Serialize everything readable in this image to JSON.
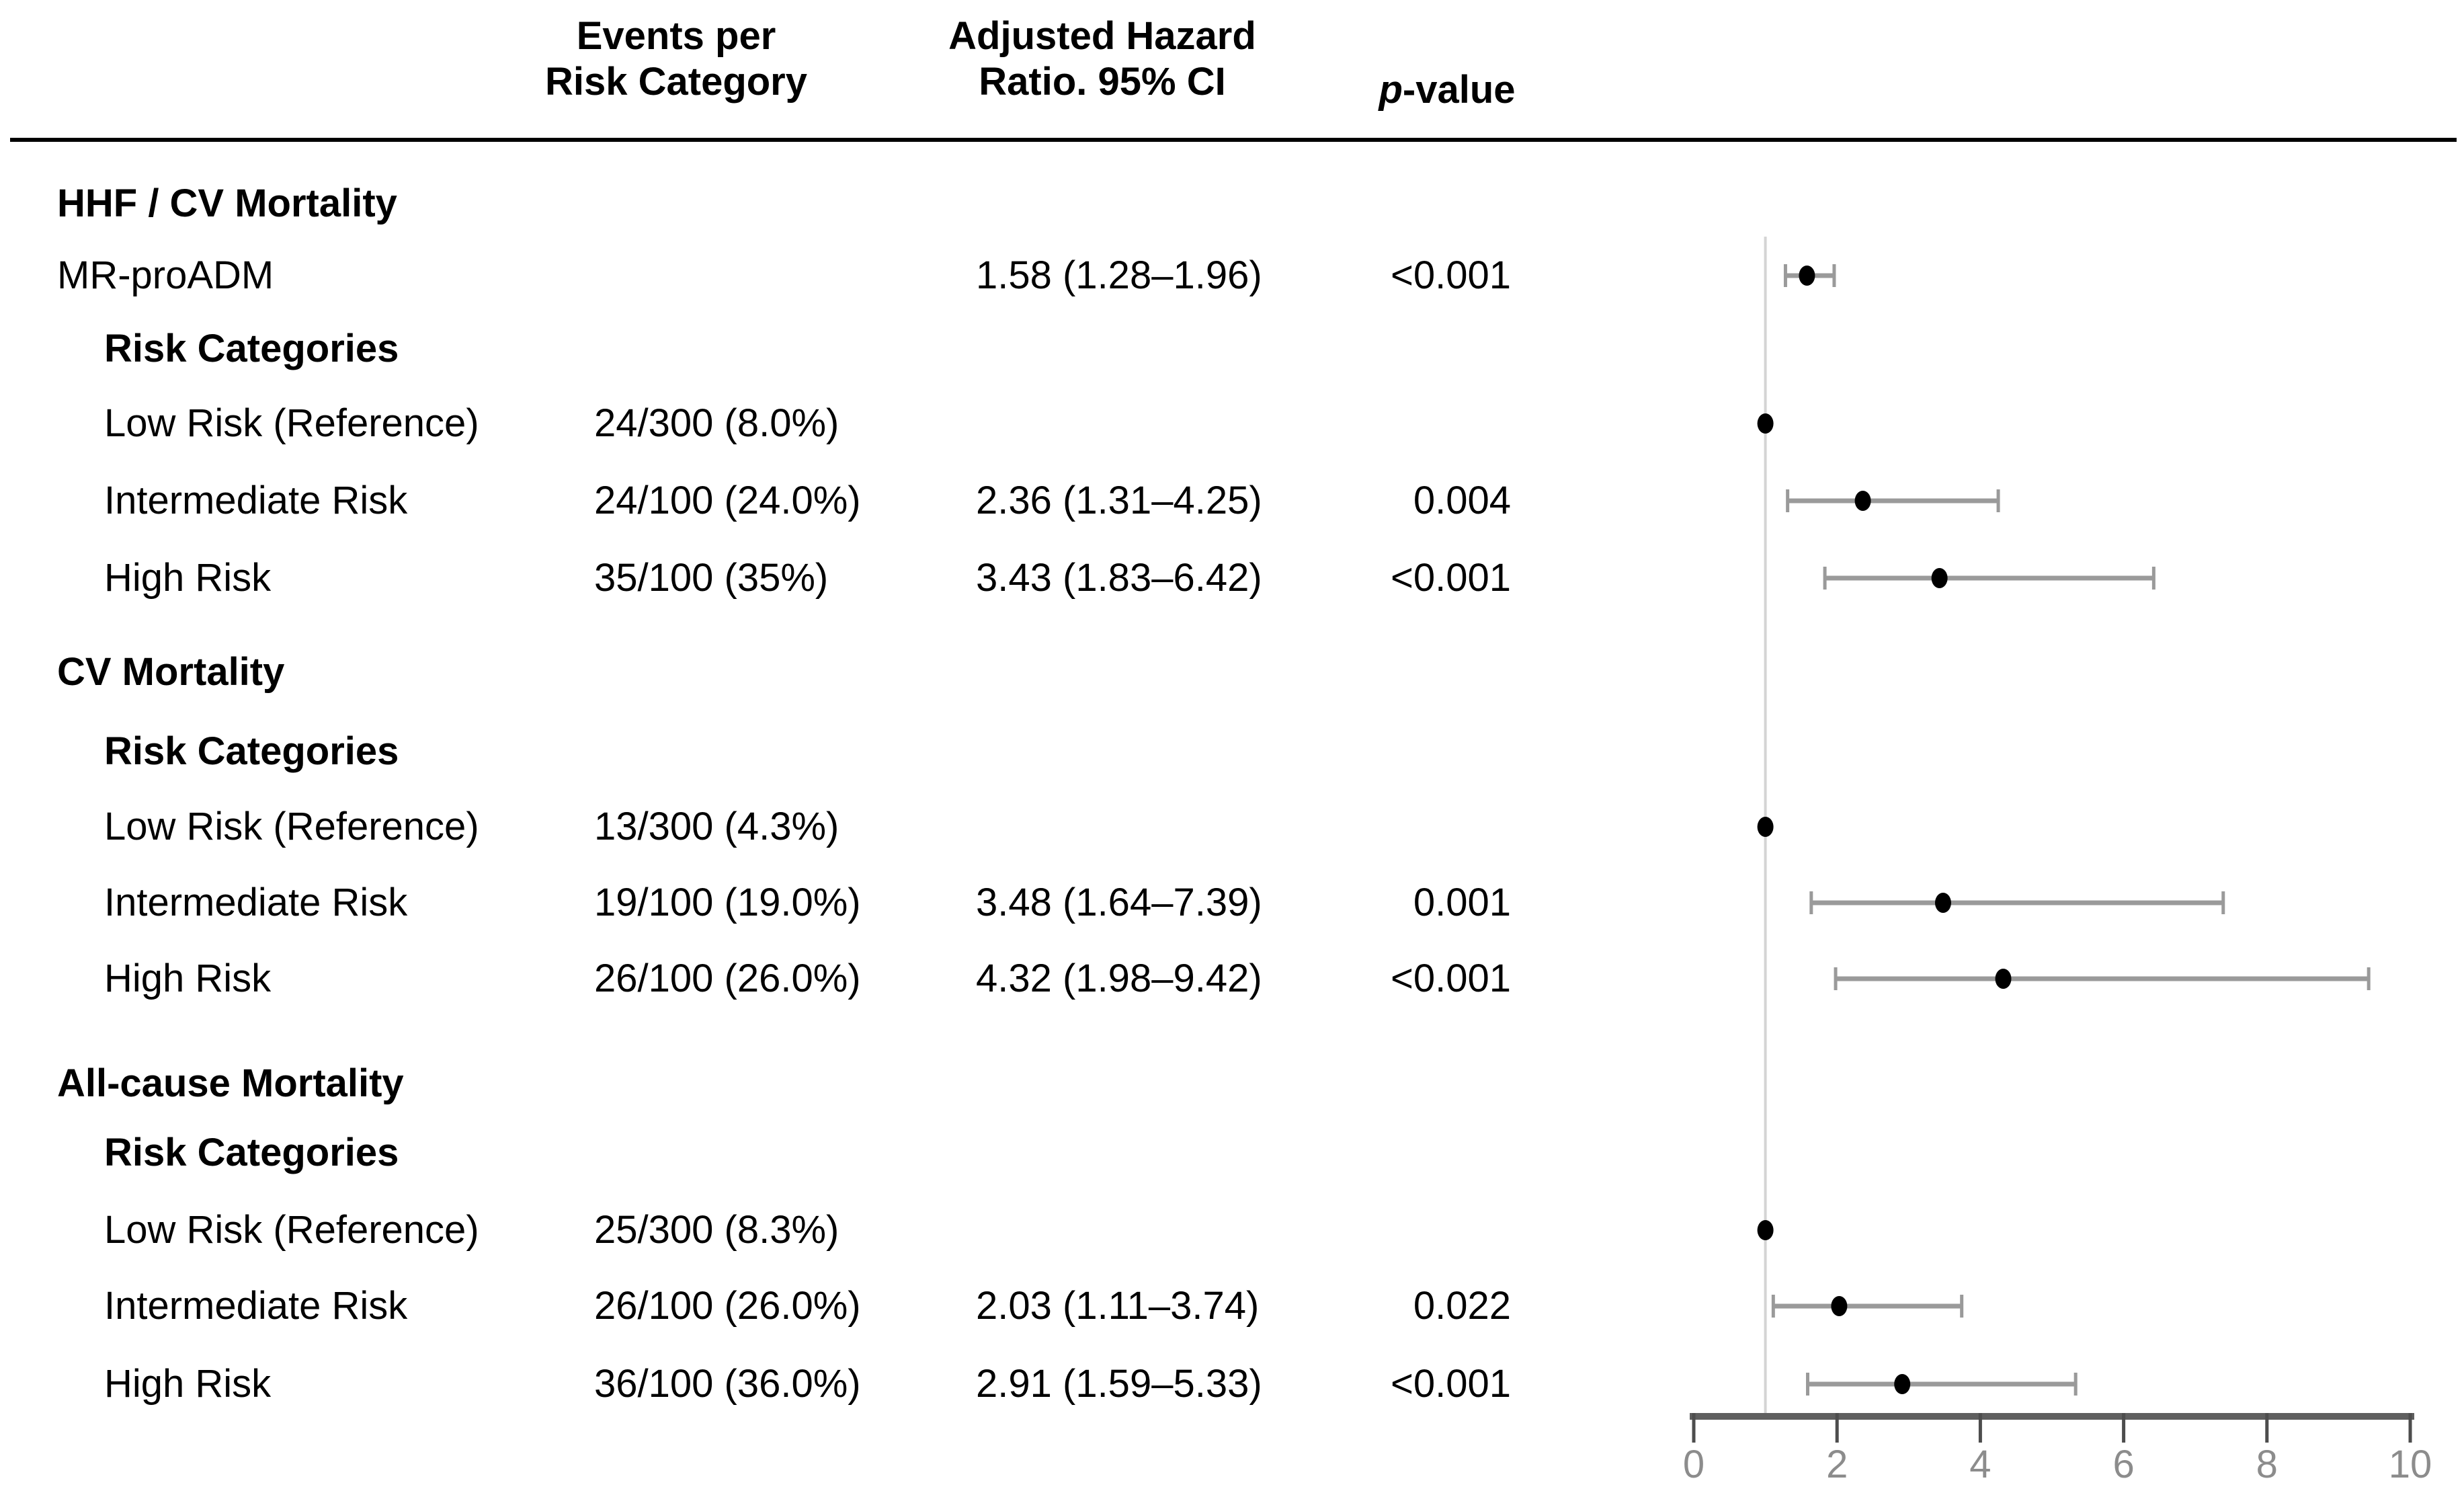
{
  "figure": {
    "columns": {
      "events": {
        "line1": "Events per",
        "line2": "Risk Category"
      },
      "hazard": {
        "line1": "Adjusted Hazard",
        "line2": "Ratio. 95% CI"
      },
      "pvalue": {
        "italic": "p",
        "rest": "-value"
      }
    },
    "rows": [
      {
        "kind": "section",
        "label": "HHF / CV Mortality"
      },
      {
        "kind": "item",
        "label": "MR-proADM",
        "hr_text": "1.58 (1.28–1.96)",
        "p": "<0.001",
        "point": 0
      },
      {
        "kind": "subheader",
        "label": "Risk Categories"
      },
      {
        "kind": "item",
        "label": "Low Risk (Reference)",
        "events": "24/300 (8.0%)",
        "point": 1
      },
      {
        "kind": "item",
        "label": "Intermediate Risk",
        "events": "24/100 (24.0%)",
        "hr_text": "2.36 (1.31–4.25)",
        "p": "0.004",
        "point": 2
      },
      {
        "kind": "item",
        "label": "High Risk",
        "events": "35/100 (35%)",
        "hr_text": "3.43 (1.83–6.42)",
        "p": "<0.001",
        "point": 3
      },
      {
        "kind": "section",
        "label": "CV Mortality"
      },
      {
        "kind": "subheader",
        "label": "Risk Categories"
      },
      {
        "kind": "item",
        "label": "Low Risk (Reference)",
        "events": "13/300 (4.3%)",
        "point": 4
      },
      {
        "kind": "item",
        "label": "Intermediate Risk",
        "events": "19/100 (19.0%)",
        "hr_text": "3.48 (1.64–7.39)",
        "p": "0.001",
        "point": 5
      },
      {
        "kind": "item",
        "label": "High Risk",
        "events": "26/100 (26.0%)",
        "hr_text": "4.32 (1.98–9.42)",
        "p": "<0.001",
        "point": 6
      },
      {
        "kind": "section",
        "label": "All-cause Mortality"
      },
      {
        "kind": "subheader",
        "label": "Risk Categories"
      },
      {
        "kind": "item",
        "label": "Low Risk (Reference)",
        "events": "25/300 (8.3%)",
        "point": 7
      },
      {
        "kind": "item",
        "label": "Intermediate Risk",
        "events": "26/100 (26.0%)",
        "hr_text": "2.03 (1.11–3.74)",
        "p": "0.022",
        "point": 8
      },
      {
        "kind": "item",
        "label": "High Risk",
        "events": "36/100 (36.0%)",
        "hr_text": "2.91 (1.59–5.33)",
        "p": "<0.001",
        "point": 9
      }
    ]
  },
  "chart_data": {
    "type": "scatter",
    "subtype": "forest-plot",
    "title": "",
    "xlabel": "",
    "ylabel": "",
    "xlim": [
      0,
      10
    ],
    "xticks": [
      0,
      2,
      4,
      6,
      8,
      10
    ],
    "reference_line_x": 1,
    "grid": false,
    "legend": "none",
    "points": [
      {
        "group": "HHF / CV Mortality",
        "label": "MR-proADM",
        "hr": 1.58,
        "ci_low": 1.28,
        "ci_high": 1.96
      },
      {
        "group": "HHF / CV Mortality",
        "label": "Low Risk (Reference)",
        "hr": 1.0,
        "ci_low": null,
        "ci_high": null
      },
      {
        "group": "HHF / CV Mortality",
        "label": "Intermediate Risk",
        "hr": 2.36,
        "ci_low": 1.31,
        "ci_high": 4.25
      },
      {
        "group": "HHF / CV Mortality",
        "label": "High Risk",
        "hr": 3.43,
        "ci_low": 1.83,
        "ci_high": 6.42
      },
      {
        "group": "CV Mortality",
        "label": "Low Risk (Reference)",
        "hr": 1.0,
        "ci_low": null,
        "ci_high": null
      },
      {
        "group": "CV Mortality",
        "label": "Intermediate Risk",
        "hr": 3.48,
        "ci_low": 1.64,
        "ci_high": 7.39
      },
      {
        "group": "CV Mortality",
        "label": "High Risk",
        "hr": 4.32,
        "ci_low": 1.98,
        "ci_high": 9.42
      },
      {
        "group": "All-cause Mortality",
        "label": "Low Risk (Reference)",
        "hr": 1.0,
        "ci_low": null,
        "ci_high": null
      },
      {
        "group": "All-cause Mortality",
        "label": "Intermediate Risk",
        "hr": 2.03,
        "ci_low": 1.11,
        "ci_high": 3.74
      },
      {
        "group": "All-cause Mortality",
        "label": "High Risk",
        "hr": 2.91,
        "ci_low": 1.59,
        "ci_high": 5.33
      }
    ],
    "colors": {
      "marker": "#000000",
      "error_bar": "#9a9a9a",
      "reference_line": "#d4d4d4",
      "axis": "#5f5f5f",
      "tick": "#4d4d4d",
      "tick_label": "#8c8c8c"
    }
  }
}
